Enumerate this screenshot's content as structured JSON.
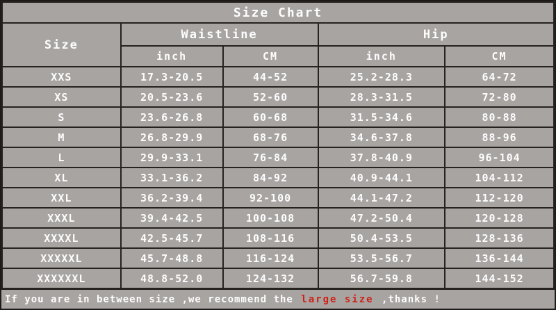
{
  "colors": {
    "background": "#a8a4a2",
    "grid_line": "#262220",
    "text": "#fdfdfd",
    "highlight_red": "#cc2318"
  },
  "chart_data": {
    "type": "table",
    "title": "Size Chart",
    "column_groups": [
      {
        "label": "Size",
        "span": 1
      },
      {
        "label": "Waistline",
        "span": 2
      },
      {
        "label": "Hip",
        "span": 2
      }
    ],
    "sub_headers": [
      "inch",
      "CM",
      "inch",
      "CM"
    ],
    "rows": [
      {
        "size": "XXS",
        "waist_inch": "17.3-20.5",
        "waist_cm": "44-52",
        "hip_inch": "25.2-28.3",
        "hip_cm": "64-72"
      },
      {
        "size": "XS",
        "waist_inch": "20.5-23.6",
        "waist_cm": "52-60",
        "hip_inch": "28.3-31.5",
        "hip_cm": "72-80"
      },
      {
        "size": "S",
        "waist_inch": "23.6-26.8",
        "waist_cm": "60-68",
        "hip_inch": "31.5-34.6",
        "hip_cm": "80-88"
      },
      {
        "size": "M",
        "waist_inch": "26.8-29.9",
        "waist_cm": "68-76",
        "hip_inch": "34.6-37.8",
        "hip_cm": "88-96"
      },
      {
        "size": "L",
        "waist_inch": "29.9-33.1",
        "waist_cm": "76-84",
        "hip_inch": "37.8-40.9",
        "hip_cm": "96-104"
      },
      {
        "size": "XL",
        "waist_inch": "33.1-36.2",
        "waist_cm": "84-92",
        "hip_inch": "40.9-44.1",
        "hip_cm": "104-112"
      },
      {
        "size": "XXL",
        "waist_inch": "36.2-39.4",
        "waist_cm": "92-100",
        "hip_inch": "44.1-47.2",
        "hip_cm": "112-120"
      },
      {
        "size": "XXXL",
        "waist_inch": "39.4-42.5",
        "waist_cm": "100-108",
        "hip_inch": "47.2-50.4",
        "hip_cm": "120-128"
      },
      {
        "size": "XXXXL",
        "waist_inch": "42.5-45.7",
        "waist_cm": "108-116",
        "hip_inch": "50.4-53.5",
        "hip_cm": "128-136"
      },
      {
        "size": "XXXXXL",
        "waist_inch": "45.7-48.8",
        "waist_cm": "116-124",
        "hip_inch": "53.5-56.7",
        "hip_cm": "136-144"
      },
      {
        "size": "XXXXXXL",
        "waist_inch": "48.8-52.0",
        "waist_cm": "124-132",
        "hip_inch": "56.7-59.8",
        "hip_cm": "144-152"
      }
    ]
  },
  "note": {
    "prefix": "If you are in between size ,we recommend the ",
    "highlight": "large size",
    "suffix": " ,thanks !"
  }
}
